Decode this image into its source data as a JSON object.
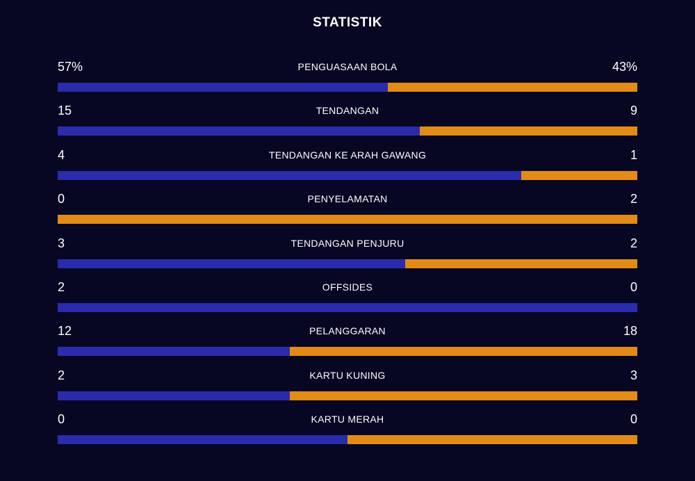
{
  "title": "STATISTIK",
  "colors": {
    "background": "#070723",
    "home": "#2B2BAE",
    "away": "#E38B17"
  },
  "stats": [
    {
      "label": "PENGUASAAN BOLA",
      "left": "57%",
      "right": "43%",
      "home_share": 57
    },
    {
      "label": "TENDANGAN",
      "left": "15",
      "right": "9",
      "home_share": 62.5
    },
    {
      "label": "TENDANGAN KE ARAH GAWANG",
      "left": "4",
      "right": "1",
      "home_share": 80
    },
    {
      "label": "PENYELAMATAN",
      "left": "0",
      "right": "2",
      "home_share": 0
    },
    {
      "label": "TENDANGAN PENJURU",
      "left": "3",
      "right": "2",
      "home_share": 60
    },
    {
      "label": "OFFSIDES",
      "left": "2",
      "right": "0",
      "home_share": 100
    },
    {
      "label": "PELANGGARAN",
      "left": "12",
      "right": "18",
      "home_share": 40
    },
    {
      "label": "KARTU KUNING",
      "left": "2",
      "right": "3",
      "home_share": 40
    },
    {
      "label": "KARTU MERAH",
      "left": "0",
      "right": "0",
      "home_share": 50
    }
  ]
}
